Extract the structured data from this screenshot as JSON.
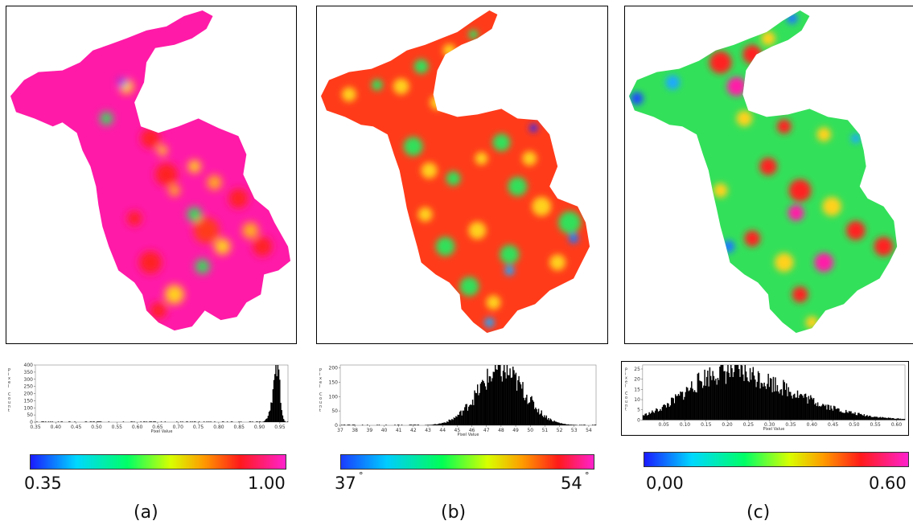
{
  "panels": [
    {
      "id": "a",
      "label": "(a)",
      "colorbar": {
        "min_label": "0.35",
        "max_label": "1.00",
        "degree": false
      },
      "histogram": {
        "xlabel": "Pixel Value",
        "ylabel": "Pixel Count",
        "xticks": [
          "0.35",
          "0.40",
          "0.45",
          "0.50",
          "0.55",
          "0.60",
          "0.65",
          "0.70",
          "0.75",
          "0.80",
          "0.85",
          "0.90",
          "0.95"
        ],
        "yticks": [
          "0",
          "50",
          "100",
          "150",
          "200",
          "250",
          "300",
          "350",
          "400"
        ],
        "xlim": [
          0.35,
          0.97
        ],
        "ylim": [
          0,
          400
        ],
        "peak_x": 0.945,
        "peak_y": 385,
        "spread": 0.012
      }
    },
    {
      "id": "b",
      "label": "(b)",
      "colorbar": {
        "min_label": "37",
        "max_label": "54",
        "degree": true
      },
      "histogram": {
        "xlabel": "Pixel Value",
        "ylabel": "Pixel Count",
        "xticks": [
          "37",
          "38",
          "39",
          "40",
          "41",
          "42",
          "43",
          "44",
          "45",
          "46",
          "47",
          "48",
          "49",
          "50",
          "51",
          "52",
          "53",
          "54"
        ],
        "yticks": [
          "0",
          "50",
          "100",
          "150",
          "200"
        ],
        "xlim": [
          37,
          54.5
        ],
        "ylim": [
          0,
          210
        ],
        "peak_x": 48.0,
        "peak_y": 200,
        "spread": 1.6
      }
    },
    {
      "id": "c",
      "label": "(c)",
      "colorbar": {
        "min_label": "0,00",
        "max_label": "0.60",
        "degree": false
      },
      "histogram": {
        "xlabel": "Pixel Value",
        "ylabel": "Pixel Count",
        "xticks": [
          "0.05",
          "0.10",
          "0.15",
          "0.20",
          "0.25",
          "0.30",
          "0.35",
          "0.40",
          "0.45",
          "0.50",
          "0.55",
          "0.60"
        ],
        "yticks": [
          "0",
          "5",
          "10",
          "15",
          "20",
          "25"
        ],
        "xlim": [
          0.0,
          0.62
        ],
        "ylim": [
          0,
          27
        ],
        "peak_x": 0.195,
        "peak_y": 25,
        "spread": 0.09
      }
    }
  ],
  "chart_data": [
    {
      "type": "bar",
      "title": "",
      "xlabel": "Pixel Value",
      "ylabel": "Pixel Count",
      "xlim": [
        0.35,
        0.97
      ],
      "ylim": [
        0,
        400
      ],
      "distribution": "sharp peak near 0.945 reaching ~385 counts"
    },
    {
      "type": "bar",
      "title": "",
      "xlabel": "Pixel Value",
      "ylabel": "Pixel Count",
      "xlim": [
        37,
        54.5
      ],
      "ylim": [
        0,
        210
      ],
      "distribution": "bell-shaped, peak near 48 reaching ~200 counts"
    },
    {
      "type": "bar",
      "title": "",
      "xlabel": "Pixel Value",
      "ylabel": "Pixel Count",
      "xlim": [
        0.0,
        0.62
      ],
      "ylim": [
        0,
        27
      ],
      "distribution": "right-skewed, peak near 0.19 reaching ~25 counts"
    }
  ],
  "colors": {
    "map_a_base": "#ff1aa8",
    "map_b_base": "#ff3b1a",
    "map_c_base": "#33e05a",
    "hist_fill": "#000000"
  }
}
